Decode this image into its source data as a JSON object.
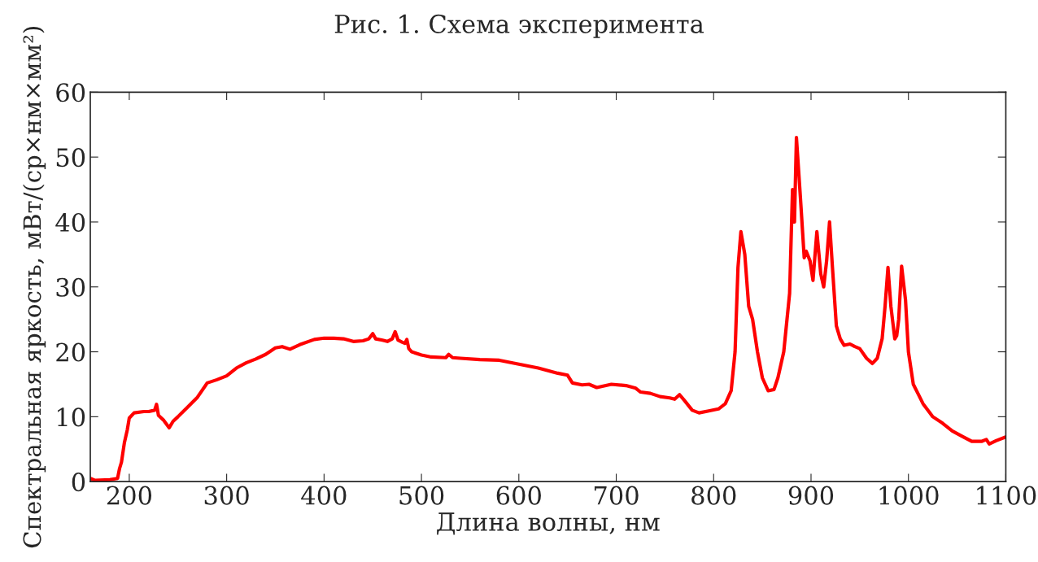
{
  "chart_data": {
    "type": "line",
    "xlabel": "Длина волны, нм",
    "ylabel": "Спектральная яркость, мВт/(ср×нм×мм²)",
    "annotations": [
      "Рис. 1. Схема эксперимента"
    ],
    "x": [
      160,
      165,
      180,
      188,
      190,
      192,
      195,
      198,
      200,
      205,
      215,
      220,
      226,
      228,
      230,
      235,
      241,
      245,
      250,
      260,
      270,
      280,
      290,
      300,
      310,
      320,
      330,
      340,
      350,
      357,
      365,
      375,
      390,
      400,
      410,
      420,
      430,
      440,
      446,
      450,
      453,
      460,
      465,
      470,
      473,
      476,
      480,
      483,
      485,
      487,
      490,
      500,
      510,
      525,
      528,
      532,
      540,
      560,
      580,
      600,
      620,
      640,
      650,
      655,
      665,
      672,
      680,
      695,
      710,
      720,
      725,
      735,
      745,
      755,
      760,
      765,
      770,
      778,
      785,
      795,
      805,
      812,
      818,
      822,
      825,
      828,
      832,
      836,
      840,
      845,
      850,
      856,
      862,
      866,
      872,
      878,
      881,
      883,
      885,
      889,
      893,
      895,
      899,
      902,
      906,
      910,
      913,
      916,
      919,
      922,
      926,
      930,
      934,
      940,
      945,
      950,
      957,
      963,
      968,
      973,
      976,
      979,
      982,
      986,
      988,
      990,
      993,
      997,
      1000,
      1005,
      1010,
      1015,
      1025,
      1035,
      1045,
      1055,
      1065,
      1075,
      1080,
      1083,
      1090,
      1100
    ],
    "series": [
      {
        "color": "#ff0000",
        "values": [
          0.5,
          0.2,
          0.3,
          0.5,
          2,
          3,
          6,
          8,
          9.8,
          10.6,
          10.8,
          10.8,
          11,
          11.9,
          10.2,
          9.5,
          8.3,
          9.3,
          10,
          11.5,
          13,
          15.2,
          15.7,
          16.3,
          17.5,
          18.3,
          18.9,
          19.6,
          20.6,
          20.8,
          20.4,
          21.1,
          21.9,
          22.1,
          22.1,
          22,
          21.6,
          21.7,
          22,
          22.8,
          22,
          21.8,
          21.6,
          22,
          23.1,
          21.8,
          21.5,
          21.3,
          21.9,
          20.5,
          20,
          19.5,
          19.2,
          19.1,
          19.6,
          19.1,
          19,
          18.8,
          18.7,
          18.1,
          17.5,
          16.7,
          16.4,
          15.2,
          14.9,
          15,
          14.5,
          15,
          14.8,
          14.4,
          13.8,
          13.6,
          13.1,
          12.9,
          12.7,
          13.4,
          12.5,
          11,
          10.6,
          10.9,
          11.2,
          12,
          14,
          20,
          33,
          38.5,
          35,
          27,
          25,
          20,
          16,
          14,
          14.2,
          16,
          20,
          29,
          45,
          40,
          53,
          44,
          34.5,
          35.5,
          34,
          31,
          38.5,
          32,
          30,
          34,
          40,
          33,
          24,
          22,
          21,
          21.2,
          20.8,
          20.5,
          19,
          18.2,
          19,
          22,
          27,
          33,
          27,
          22,
          22.5,
          25,
          33.2,
          28,
          20,
          15,
          13.5,
          12,
          10,
          9,
          7.8,
          7,
          6.2,
          6.2,
          6.5,
          5.8,
          6.3,
          6.9
        ]
      }
    ],
    "xlim": [
      160,
      1100
    ],
    "ylim": [
      0,
      60
    ],
    "xticks": [
      200,
      300,
      400,
      500,
      600,
      700,
      800,
      900,
      1000,
      1100
    ],
    "yticks": [
      0,
      10,
      20,
      30,
      40,
      50,
      60
    ],
    "grid": false,
    "legend": false,
    "marker": "none",
    "line_style": "solid"
  }
}
